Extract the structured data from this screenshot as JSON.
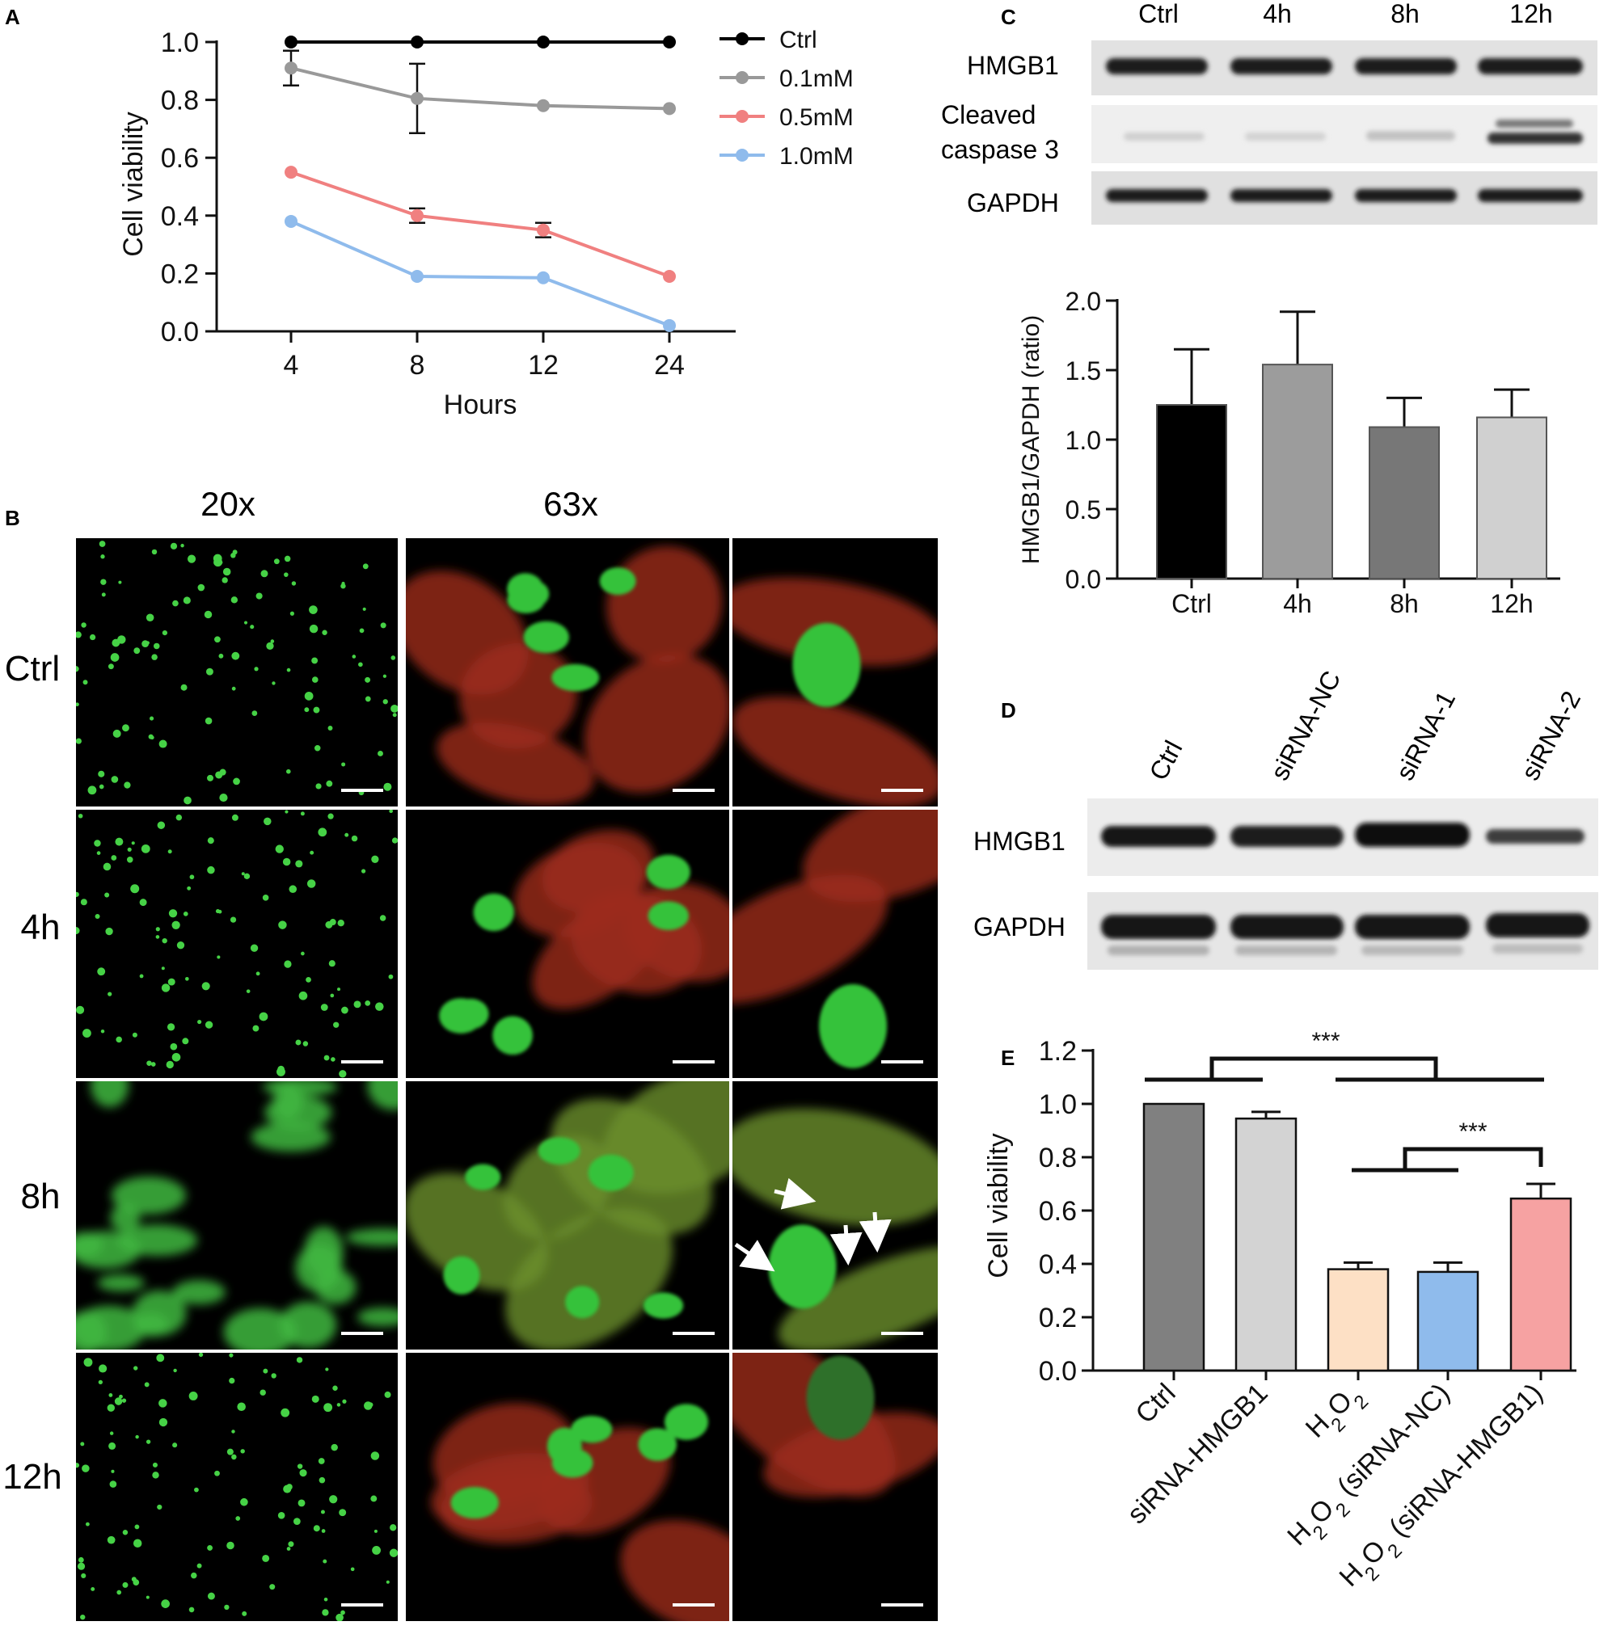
{
  "panel_labels": {
    "a": "A",
    "b": "B",
    "c": "C",
    "d": "D",
    "e": "E"
  },
  "chart_data": [
    {
      "id": "A",
      "type": "line",
      "xlabel": "Hours",
      "ylabel": "Cell viability",
      "categories": [
        "4",
        "8",
        "12",
        "24"
      ],
      "yticks": [
        "0.0",
        "0.2",
        "0.4",
        "0.6",
        "0.8",
        "1.0"
      ],
      "ylim": [
        0,
        1
      ],
      "legend_position": "top-right",
      "series": [
        {
          "name": "Ctrl",
          "color": "#000000",
          "values": [
            1.0,
            1.0,
            1.0,
            1.0
          ],
          "errors": [
            0,
            0,
            0,
            0
          ]
        },
        {
          "name": "0.1mM",
          "color": "#999999",
          "values": [
            0.91,
            0.805,
            0.78,
            0.77
          ],
          "errors": [
            0.06,
            0.12,
            0,
            0
          ]
        },
        {
          "name": "0.5mM",
          "color": "#f08080",
          "values": [
            0.55,
            0.4,
            0.35,
            0.19
          ],
          "errors": [
            0,
            0.025,
            0.025,
            0
          ]
        },
        {
          "name": "1.0mM",
          "color": "#8fbbec",
          "values": [
            0.38,
            0.19,
            0.185,
            0.02
          ],
          "errors": [
            0,
            0,
            0,
            0
          ]
        }
      ]
    },
    {
      "id": "C",
      "type": "bar",
      "ylabel": "HMGB1/GAPDH (ratio)",
      "categories": [
        "Ctrl",
        "4h",
        "8h",
        "12h"
      ],
      "values": [
        1.25,
        1.54,
        1.09,
        1.16
      ],
      "errors": [
        0.4,
        0.38,
        0.21,
        0.2
      ],
      "colors": [
        "#000000",
        "#9c9c9c",
        "#777777",
        "#d0d0d0"
      ],
      "yticks": [
        "0.0",
        "0.5",
        "1.0",
        "1.5",
        "2.0"
      ],
      "ylim": [
        0,
        2
      ]
    },
    {
      "id": "E",
      "type": "bar",
      "ylabel": "Cell viability",
      "categories": [
        "Ctrl",
        "siRNA-HMGB1",
        "H2O2",
        "H2O2 (siRNA-NC)",
        "H2O2 (siRNA-HMGB1)"
      ],
      "values": [
        1.0,
        0.945,
        0.38,
        0.37,
        0.645
      ],
      "errors": [
        0,
        0.025,
        0.025,
        0.035,
        0.055
      ],
      "colors": [
        "#808080",
        "#d3d3d3",
        "#fde0c5",
        "#8fbbec",
        "#f6a2a2"
      ],
      "yticks": [
        "0.0",
        "0.2",
        "0.4",
        "0.6",
        "0.8",
        "1.0",
        "1.2"
      ],
      "ylim": [
        0,
        1.2
      ],
      "significance": [
        "***",
        "***"
      ]
    }
  ],
  "panelB": {
    "col_headers": [
      "20x",
      "63x"
    ],
    "row_labels": [
      "Ctrl",
      "4h",
      "8h",
      "12h"
    ]
  },
  "blotC": {
    "lanes": [
      "Ctrl",
      "4h",
      "8h",
      "12h"
    ],
    "bands": [
      "HMGB1",
      "Cleaved",
      "caspase 3",
      "GAPDH"
    ]
  },
  "blotD": {
    "lanes": [
      "Ctrl",
      "siRNA-NC",
      "siRNA-1",
      "siRNA-2"
    ],
    "bands": [
      "HMGB1",
      "GAPDH"
    ]
  }
}
